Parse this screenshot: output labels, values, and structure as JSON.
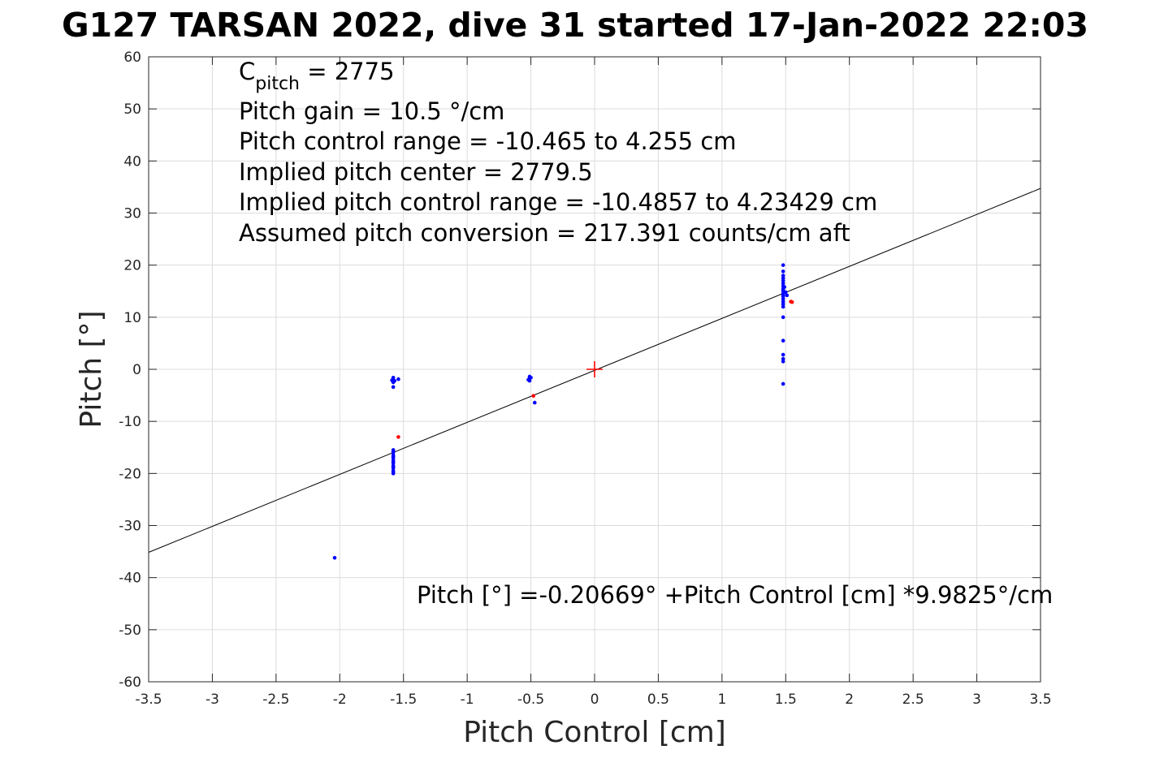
{
  "chart_data": {
    "type": "scatter",
    "title": "G127 TARSAN 2022, dive 31 started 17-Jan-2022 22:03",
    "xlabel": "Pitch Control [cm]",
    "ylabel": "Pitch [°]",
    "xlim": [
      -3.5,
      3.5
    ],
    "ylim": [
      -60,
      60
    ],
    "xticks": [
      -3.5,
      -3,
      -2.5,
      -2,
      -1.5,
      -1,
      -0.5,
      0,
      0.5,
      1,
      1.5,
      2,
      2.5,
      3,
      3.5
    ],
    "xtick_labels": [
      "-3.5",
      "-3",
      "-2.5",
      "-2",
      "-1.5",
      "-1",
      "-0.5",
      "0",
      "0.5",
      "1",
      "1.5",
      "2",
      "2.5",
      "3",
      "3.5"
    ],
    "yticks": [
      60,
      50,
      40,
      30,
      20,
      10,
      0,
      -10,
      -20,
      -30,
      -40,
      -50,
      -60
    ],
    "ytick_labels": [
      "60",
      "50",
      "40",
      "30",
      "20",
      "10",
      "0",
      "-10",
      "-20",
      "-30",
      "-40",
      "-50",
      "-60"
    ],
    "grid": true,
    "annotations": {
      "cpitch_main": "C",
      "cpitch_sub": "pitch",
      "cpitch_value": " = 2775",
      "lines": [
        "Pitch gain = 10.5 °/cm",
        "Pitch control range = -10.465 to 4.255 cm",
        "Implied pitch center = 2779.5",
        "Implied pitch control range = -10.4857 to 4.23429 cm",
        "Assumed pitch conversion = 217.391 counts/cm aft"
      ],
      "fit_equation": "Pitch [°] =-0.20669° +Pitch Control [cm] *9.9825°/cm"
    },
    "fit_line": {
      "intercept": -0.20669,
      "slope": 9.9825,
      "color": "#000000"
    },
    "center_marker": {
      "x": 0,
      "y": 0,
      "color": "#ff0000"
    },
    "series": [
      {
        "color": "#0000ff",
        "x": [
          -1.58,
          -1.58,
          -1.58,
          -1.58,
          -1.58,
          -1.58,
          -1.58,
          -1.58,
          -1.58,
          -1.58,
          -1.58,
          -1.58,
          -1.58,
          -1.58,
          -1.58,
          -1.58,
          -1.58,
          -1.58,
          -1.59,
          -1.57,
          -1.54,
          -1.58,
          -2.04,
          -0.51,
          -0.51,
          -0.51,
          -0.5,
          -0.52,
          -0.47,
          1.48,
          1.48,
          1.48,
          1.48,
          1.48,
          1.48,
          1.48,
          1.48,
          1.48,
          1.48,
          1.48,
          1.48,
          1.48,
          1.48,
          1.48,
          1.48,
          1.48,
          1.48,
          1.48,
          1.5,
          1.51,
          1.49,
          1.48,
          1.48,
          1.48,
          1.48,
          1.48
        ],
        "y": [
          -15.5,
          -16.0,
          -16.5,
          -17.0,
          -17.5,
          -18.0,
          -18.5,
          -19.0,
          -19.5,
          -20.0,
          -15.8,
          -16.8,
          -17.8,
          -18.8,
          -19.8,
          -2.0,
          -2.5,
          -1.6,
          -2.1,
          -2.2,
          -1.9,
          -3.4,
          -36.2,
          -1.4,
          -1.8,
          -2.2,
          -1.6,
          -2.0,
          -6.4,
          20.0,
          18.8,
          18.0,
          17.5,
          17.0,
          16.5,
          16.0,
          15.5,
          15.0,
          14.5,
          14.0,
          13.5,
          13.0,
          12.5,
          12.0,
          14.5,
          14.2,
          15.2,
          10.0,
          14.8,
          14.2,
          15.8,
          5.5,
          2.8,
          2.0,
          1.5,
          -2.8
        ]
      },
      {
        "color": "#ff0000",
        "x": [
          -1.54,
          -0.48,
          1.54,
          1.55
        ],
        "y": [
          -13.0,
          -5.1,
          13.0,
          12.9
        ]
      }
    ]
  }
}
